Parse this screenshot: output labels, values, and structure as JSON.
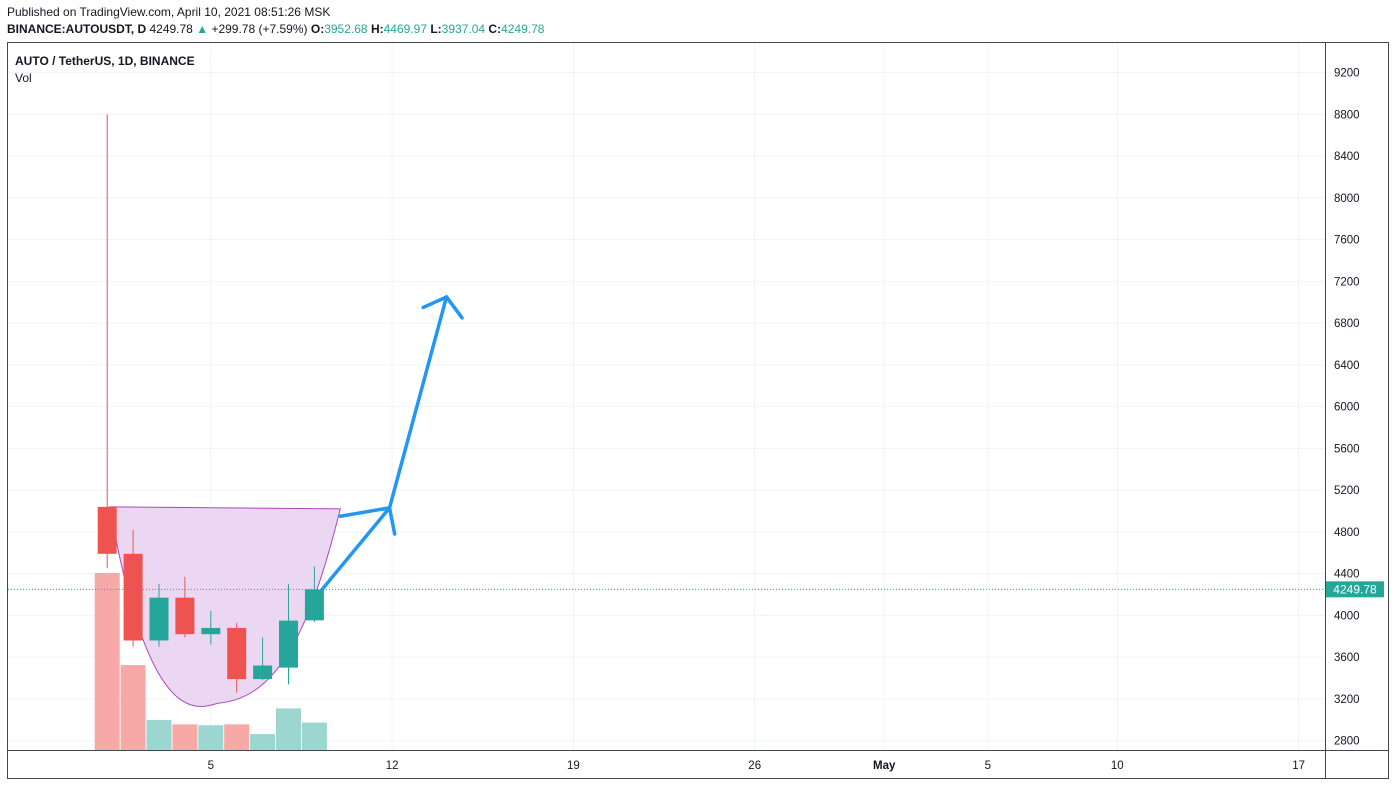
{
  "header": {
    "published": "Published on TradingView.com, April 10, 2021 08:51:26 MSK",
    "ticker": "BINANCE:AUTOUSDT, D",
    "last": "4249.78",
    "change_arrow": "▲",
    "change": "+299.78 (+7.59%)",
    "o_label": "O:",
    "o_value": "3952.68",
    "h_label": "H:",
    "h_value": "4469.97",
    "l_label": "L:",
    "l_value": "3937.04",
    "c_label": "C:",
    "c_value": "4249.78"
  },
  "legend": {
    "symbol": "AUTO / TetherUS, 1D, BINANCE",
    "volume": "Vol"
  },
  "colors": {
    "up": "#26a69a",
    "down": "#ef5350",
    "up_volume": "#9bd6d1",
    "down_volume": "#f6a9a7",
    "pattern_fill": "#e9d0f0",
    "pattern_stroke": "#ab47bc",
    "arrow": "#2196f3",
    "grid": "#f0f3fa",
    "price_line": "#26a69a"
  },
  "chart_data": {
    "type": "candlestick",
    "ylim": [
      2700,
      9400
    ],
    "y_ticks": [
      2800,
      3200,
      3600,
      4000,
      4400,
      4800,
      5200,
      5600,
      6000,
      6400,
      6800,
      7200,
      7600,
      8000,
      8400,
      8800,
      9200
    ],
    "x_labels": [
      {
        "label": "5",
        "day": 5
      },
      {
        "label": "12",
        "day": 12
      },
      {
        "label": "19",
        "day": 19
      },
      {
        "label": "26",
        "day": 26
      },
      {
        "label": "May",
        "day": 31,
        "bold": true
      },
      {
        "label": "5",
        "day": 35
      },
      {
        "label": "10",
        "day": 40
      },
      {
        "label": "17",
        "day": 47
      }
    ],
    "last_price_label": "4249.78",
    "last_price": 4249.78,
    "candles": [
      {
        "day": 1,
        "open": 5040,
        "high": 8800,
        "low": 4450,
        "close": 4590
      },
      {
        "day": 2,
        "open": 4590,
        "high": 4820,
        "low": 3700,
        "close": 3760
      },
      {
        "day": 3,
        "open": 3760,
        "high": 4300,
        "low": 3700,
        "close": 4170
      },
      {
        "day": 4,
        "open": 4170,
        "high": 4370,
        "low": 3790,
        "close": 3820
      },
      {
        "day": 5,
        "open": 3820,
        "high": 4040,
        "low": 3720,
        "close": 3880
      },
      {
        "day": 6,
        "open": 3880,
        "high": 3930,
        "low": 3260,
        "close": 3390
      },
      {
        "day": 7,
        "open": 3390,
        "high": 3790,
        "low": 3380,
        "close": 3520
      },
      {
        "day": 8,
        "open": 3500,
        "high": 4300,
        "low": 3340,
        "close": 3950
      },
      {
        "day": 9,
        "open": 3952.68,
        "high": 4469.97,
        "low": 3937.04,
        "close": 4249.78
      }
    ],
    "volume": [
      {
        "day": 1,
        "value": 1.0,
        "dir": "down"
      },
      {
        "day": 2,
        "value": 0.48,
        "dir": "down"
      },
      {
        "day": 3,
        "value": 0.17,
        "dir": "up"
      },
      {
        "day": 4,
        "value": 0.145,
        "dir": "down"
      },
      {
        "day": 5,
        "value": 0.14,
        "dir": "up"
      },
      {
        "day": 6,
        "value": 0.145,
        "dir": "down"
      },
      {
        "day": 7,
        "value": 0.09,
        "dir": "up"
      },
      {
        "day": 8,
        "value": 0.235,
        "dir": "up"
      },
      {
        "day": 9,
        "value": 0.155,
        "dir": "up"
      }
    ],
    "drawings": {
      "cup": {
        "left": {
          "day": 1.1,
          "price": 5040
        },
        "right": {
          "day": 10.0,
          "price": 5020
        },
        "bottom": {
          "day": 5.3,
          "price": 3160
        }
      },
      "arrow_path": [
        {
          "day": 9.3,
          "price": 4250
        },
        {
          "day": 11.9,
          "price": 5030
        },
        {
          "day": 14.1,
          "price": 7050
        }
      ],
      "arrow_small_stub": [
        {
          "day": 10.0,
          "price": 4950
        },
        {
          "day": 11.9,
          "price": 5030
        }
      ],
      "arrow_head_small": [
        {
          "day": 12.1,
          "price": 4780
        }
      ],
      "arrow_head_big": [
        {
          "day": 13.2,
          "price": 6950
        },
        {
          "day": 14.7,
          "price": 6850
        }
      ]
    }
  }
}
